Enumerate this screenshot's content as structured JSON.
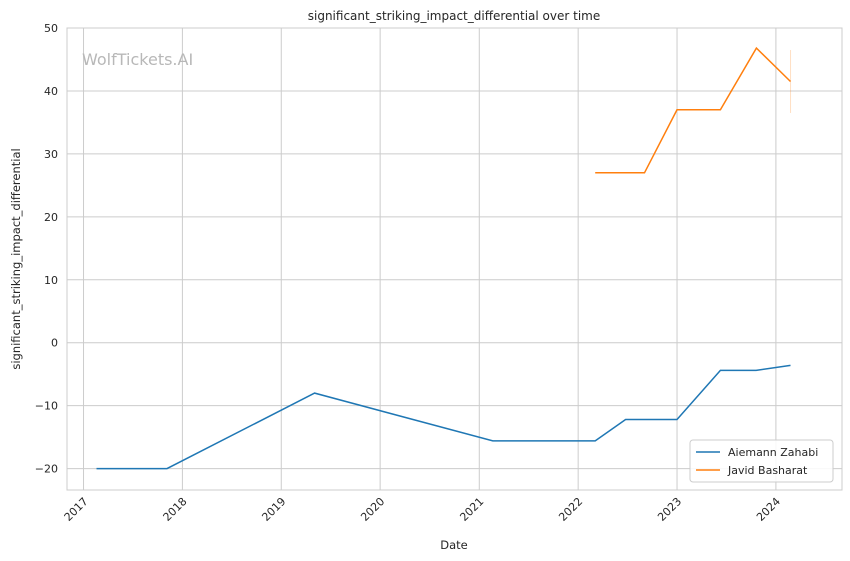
{
  "chart_data": {
    "type": "line",
    "title": "significant_striking_impact_differential over time",
    "xlabel": "Date",
    "ylabel": "significant_striking_impact_differential",
    "watermark": "WolfTickets.AI",
    "xlim": [
      "2016-11-01",
      "2024-09-01"
    ],
    "ylim": [
      -23.4,
      50
    ],
    "yticks": [
      -20,
      -10,
      0,
      10,
      20,
      30,
      40,
      50
    ],
    "xticks": [
      "2017",
      "2018",
      "2019",
      "2020",
      "2021",
      "2022",
      "2023",
      "2024"
    ],
    "grid": true,
    "legend_position": "bottom-right",
    "series": [
      {
        "name": "Aiemann Zahabi",
        "color": "#1f77b4",
        "points": [
          {
            "x": "2017-02-18",
            "y": -20.0
          },
          {
            "x": "2017-11-05",
            "y": -20.0
          },
          {
            "x": "2019-05-04",
            "y": -8.0
          },
          {
            "x": "2021-02-20",
            "y": -15.6
          },
          {
            "x": "2022-03-05",
            "y": -15.6
          },
          {
            "x": "2022-06-25",
            "y": -12.2
          },
          {
            "x": "2023-01-01",
            "y": -12.2
          },
          {
            "x": "2023-06-10",
            "y": -4.4
          },
          {
            "x": "2023-10-20",
            "y": -4.4
          },
          {
            "x": "2024-02-24",
            "y": -3.6
          }
        ]
      },
      {
        "name": "Javid Basharat",
        "color": "#ff7f0e",
        "points": [
          {
            "x": "2022-03-05",
            "y": 27.0
          },
          {
            "x": "2022-09-03",
            "y": 27.0
          },
          {
            "x": "2023-01-01",
            "y": 37.0
          },
          {
            "x": "2023-06-10",
            "y": 37.0
          },
          {
            "x": "2023-10-21",
            "y": 46.8
          },
          {
            "x": "2024-02-24",
            "y": 41.5
          }
        ]
      }
    ]
  }
}
